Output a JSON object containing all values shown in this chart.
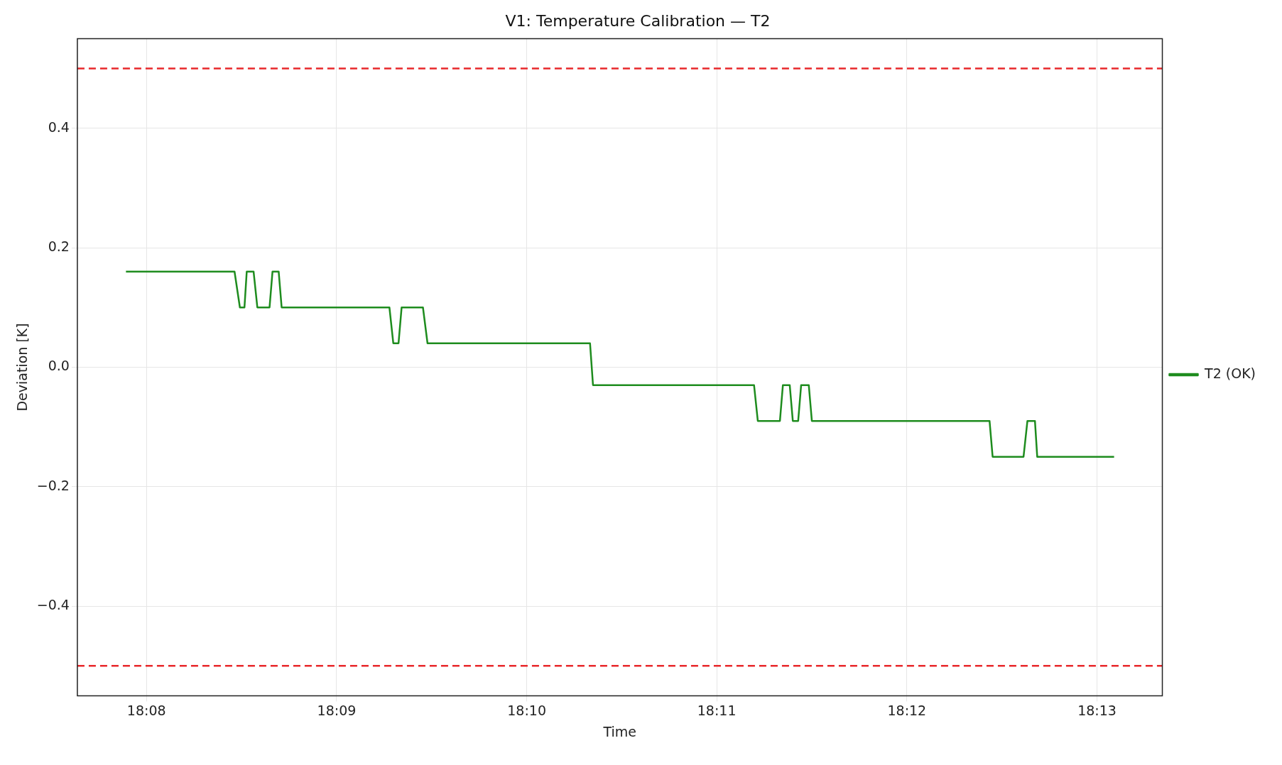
{
  "chart_data": {
    "type": "line",
    "title": "V1: Temperature Calibration — T2",
    "xlabel": "Time",
    "ylabel": "Deviation [K]",
    "xlim": [
      18.12727,
      18.2224
    ],
    "ylim": [
      -0.55,
      0.55
    ],
    "xticks": [
      {
        "value": 18.13333,
        "label": "18:08"
      },
      {
        "value": 18.15,
        "label": "18:09"
      },
      {
        "value": 18.16667,
        "label": "18:10"
      },
      {
        "value": 18.18333,
        "label": "18:11"
      },
      {
        "value": 18.2,
        "label": "18:12"
      },
      {
        "value": 18.21667,
        "label": "18:13"
      }
    ],
    "yticks": [
      {
        "value": -0.4,
        "label": "−0.4"
      },
      {
        "value": -0.2,
        "label": "−0.2"
      },
      {
        "value": 0,
        "label": "0.0"
      },
      {
        "value": 0.2,
        "label": "0.2"
      },
      {
        "value": 0.4,
        "label": "0.4"
      }
    ],
    "grid": true,
    "legend": "right",
    "marker": "none",
    "line_style": "solid",
    "ref_lines": [
      {
        "axis": "y",
        "value": 0.5,
        "color": "#e8282b",
        "line_style": "dashed"
      },
      {
        "axis": "y",
        "value": -0.5,
        "color": "#e8282b",
        "line_style": "dashed"
      }
    ],
    "series": [
      {
        "name": "T2 (OK)",
        "color": "#1e8c1e",
        "x": [
          18.13153,
          18.14105,
          18.14152,
          18.14192,
          18.14212,
          18.14272,
          18.14305,
          18.14412,
          18.14438,
          18.14492,
          18.14518,
          18.15463,
          18.15497,
          18.15543,
          18.1557,
          18.15757,
          18.15797,
          18.17222,
          18.17248,
          18.1866,
          18.18693,
          18.18887,
          18.18913,
          18.18973,
          18.19,
          18.19047,
          18.19073,
          18.1914,
          18.19167,
          18.20725,
          18.20752,
          18.21023,
          18.21057,
          18.21123,
          18.21143,
          18.21817
        ],
        "values": [
          0.16,
          0.16,
          0.1,
          0.1,
          0.16,
          0.16,
          0.1,
          0.1,
          0.16,
          0.16,
          0.1,
          0.1,
          0.04,
          0.04,
          0.1,
          0.1,
          0.04,
          0.04,
          -0.03,
          -0.03,
          -0.09,
          -0.09,
          -0.03,
          -0.03,
          -0.09,
          -0.09,
          -0.03,
          -0.03,
          -0.09,
          -0.09,
          -0.15,
          -0.15,
          -0.09,
          -0.09,
          -0.15,
          -0.15
        ]
      }
    ]
  }
}
